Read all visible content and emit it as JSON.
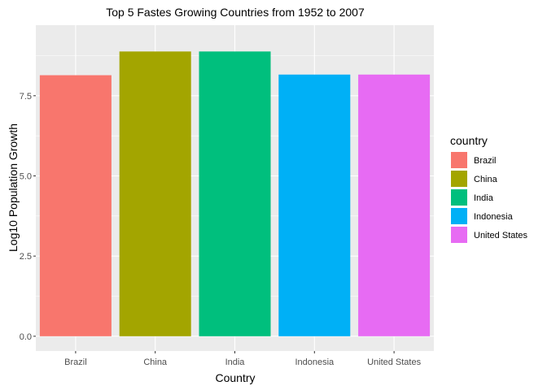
{
  "chart_data": {
    "type": "bar",
    "title": "Top 5 Fastes Growing Countries from 1952 to 2007",
    "xlabel": "Country",
    "ylabel": "Log10 Population Growth",
    "categories": [
      "Brazil",
      "China",
      "India",
      "Indonesia",
      "United States"
    ],
    "values": [
      8.14,
      8.88,
      8.88,
      8.16,
      8.16
    ],
    "colors": [
      "#F8766D",
      "#A3A500",
      "#00BF7D",
      "#00B0F6",
      "#E76BF3"
    ],
    "ylim": [
      -0.46,
      9.7
    ],
    "yticks": [
      0.0,
      2.5,
      5.0,
      7.5
    ],
    "ytick_labels": [
      "0.0",
      "2.5",
      "5.0",
      "7.5"
    ],
    "grid": true,
    "legend": {
      "title": "country",
      "position": "right",
      "items": [
        "Brazil",
        "China",
        "India",
        "Indonesia",
        "United States"
      ]
    }
  }
}
